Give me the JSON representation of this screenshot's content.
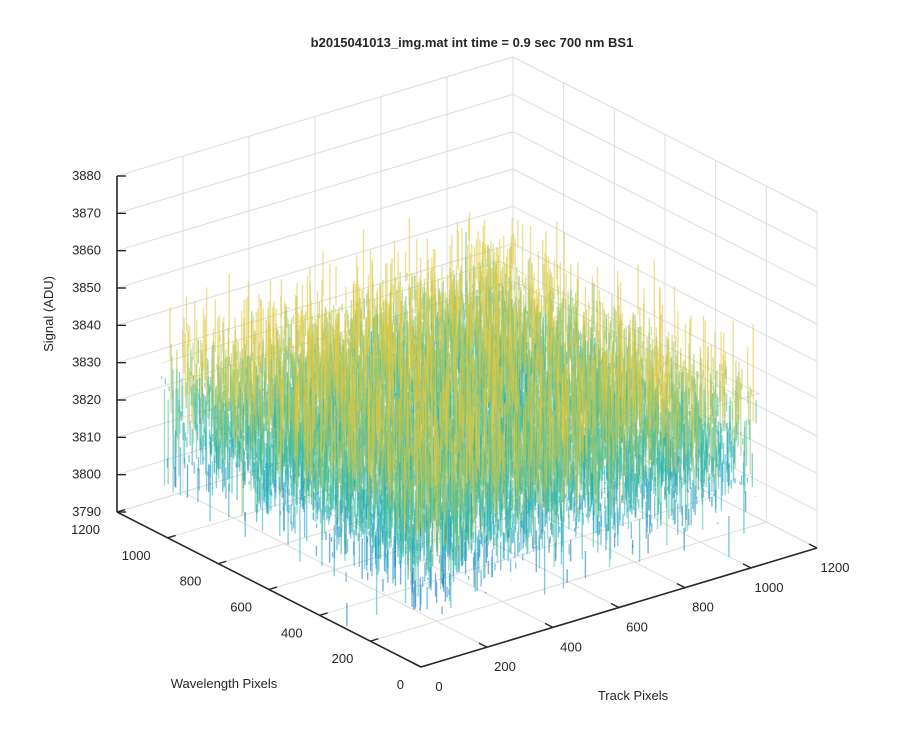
{
  "chart_data": {
    "type": "surface",
    "title": "b2015041013_img.mat int time = 0.9 sec  700 nm BS1",
    "xlabel": "Track Pixels",
    "ylabel": "Wavelength Pixels",
    "zlabel": "Signal (ADU)",
    "xlim": [
      0,
      1200
    ],
    "ylim": [
      0,
      1200
    ],
    "zlim": [
      3790,
      3880
    ],
    "xticks": [
      "0",
      "200",
      "400",
      "600",
      "800",
      "1000",
      "1200"
    ],
    "yticks": [
      "0",
      "200",
      "400",
      "600",
      "800",
      "1000",
      "1200"
    ],
    "zticks": [
      "3790",
      "3800",
      "3810",
      "3820",
      "3830",
      "3840",
      "3850",
      "3860",
      "3870",
      "3880"
    ],
    "data_x_range": [
      0,
      1024
    ],
    "data_y_range": [
      0,
      1024
    ],
    "signal_mean": 3822,
    "signal_spread": [
      3800,
      3848
    ],
    "colormap": [
      "#0d6fbf",
      "#1a9ac9",
      "#22b0b8",
      "#4fbf93",
      "#a8c462",
      "#e0c840"
    ],
    "grid": true,
    "view": "3d-isometric"
  }
}
